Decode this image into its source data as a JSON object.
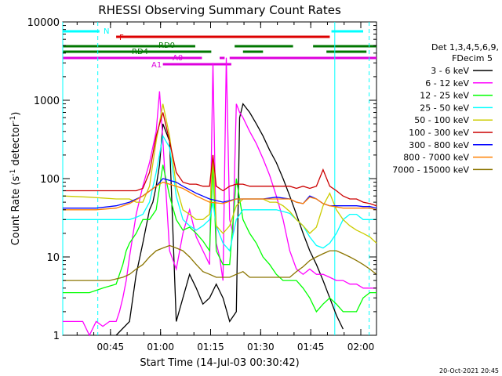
{
  "chart_data": {
    "type": "line",
    "title": "RHESSI Observing Summary Count Rates",
    "xlabel": "Start Time (14-Jul-03 00:30:42)",
    "ylabel": "Count Rate (s",
    "ylabel_sup": "-1",
    "ylabel_tail": " detector",
    "ylabel_end": ")",
    "y_scale": "log",
    "xlim_minutes": [
      0,
      94
    ],
    "ylim": [
      1,
      10000
    ],
    "x_ticks": [
      {
        "t": 14.3,
        "label": "00:45"
      },
      {
        "t": 29.3,
        "label": "01:00"
      },
      {
        "t": 44.3,
        "label": "01:15"
      },
      {
        "t": 59.3,
        "label": "01:30"
      },
      {
        "t": 74.3,
        "label": "01:45"
      },
      {
        "t": 89.3,
        "label": "02:00"
      }
    ],
    "y_ticks": [
      {
        "v": 1,
        "label": "1"
      },
      {
        "v": 10,
        "label": "10"
      },
      {
        "v": 100,
        "label": "100"
      },
      {
        "v": 1000,
        "label": "1000"
      },
      {
        "v": 10000,
        "label": "10000"
      }
    ],
    "legend": {
      "header": [
        "Det 1,3,4,5,6,9,",
        "FDecim 5"
      ],
      "entries": [
        {
          "label": "3 - 6 keV",
          "color": "#000000"
        },
        {
          "label": "6 - 12 keV",
          "color": "#ff00ff"
        },
        {
          "label": "12 - 25 keV",
          "color": "#00ff00"
        },
        {
          "label": "25 - 50 keV",
          "color": "#00ffff"
        },
        {
          "label": "50 - 100 keV",
          "color": "#cccc00"
        },
        {
          "label": "100 - 300 keV",
          "color": "#cc0000"
        },
        {
          "label": "300 - 800 keV",
          "color": "#0000ff"
        },
        {
          "label": "800 - 7000 keV",
          "color": "#ff8000"
        },
        {
          "label": "7000 - 15000 keV",
          "color": "#8b7500"
        }
      ]
    },
    "flag_bars": [
      {
        "label": "N",
        "color": "#00ffff",
        "segments": [
          [
            0,
            11
          ],
          [
            80.5,
            90
          ]
        ]
      },
      {
        "label": "F",
        "color": "#dd0000",
        "segments": [
          [
            16,
            80
          ]
        ]
      },
      {
        "label": "RD0",
        "color": "#007700",
        "segments": [
          [
            0,
            39.7
          ],
          [
            51.5,
            69
          ],
          [
            75,
            93
          ],
          [
            92,
            94
          ]
        ]
      },
      {
        "label": "RD4",
        "color": "#007700",
        "segments": [
          [
            0,
            44.5
          ],
          [
            54,
            60
          ],
          [
            79,
            91
          ]
        ]
      },
      {
        "label": "A0",
        "color": "#dd00dd",
        "segments": [
          [
            0,
            41.7
          ],
          [
            47,
            48.5
          ],
          [
            50,
            94
          ]
        ]
      },
      {
        "label": "A1",
        "color": "#dd00dd",
        "segments": [
          [
            30,
            50.5
          ]
        ]
      }
    ],
    "vertical_lines": [
      {
        "t": 0,
        "style": "solid"
      },
      {
        "t": 10.5,
        "style": "dashed"
      },
      {
        "t": 81.5,
        "style": "solid"
      },
      {
        "t": 91.8,
        "style": "dashed"
      }
    ],
    "series": [
      {
        "name": "3 - 6 keV",
        "color": "#000000",
        "level": 1,
        "t": [
          16,
          20,
          22,
          24,
          26,
          27,
          28,
          29,
          30,
          32,
          34,
          36,
          38,
          40,
          42,
          44,
          46,
          48,
          50,
          52,
          53,
          54,
          56,
          58,
          60,
          62,
          64,
          66,
          68,
          70,
          72,
          74,
          76,
          78,
          80,
          82,
          84
        ],
        "y": [
          1,
          1.5,
          6,
          15,
          40,
          50,
          80,
          150,
          500,
          300,
          1.5,
          3,
          6,
          4,
          2.5,
          3,
          4.5,
          3,
          1.5,
          2,
          600,
          900,
          700,
          500,
          350,
          230,
          160,
          100,
          60,
          35,
          20,
          12,
          8,
          5,
          3,
          1.8,
          1.2
        ]
      },
      {
        "name": "6 - 12 keV",
        "color": "#ff00ff",
        "level": 2,
        "t": [
          0,
          4,
          6,
          8,
          10,
          12,
          14,
          16,
          17,
          18,
          19,
          20,
          22,
          24,
          26,
          28,
          29,
          30,
          32,
          34,
          36,
          38,
          40,
          42,
          44,
          45,
          46,
          47,
          48,
          49,
          50,
          51,
          52,
          53,
          54,
          56,
          58,
          60,
          62,
          64,
          66,
          68,
          70,
          72,
          74,
          76,
          78,
          80,
          82,
          84,
          86,
          88,
          90,
          92,
          94
        ],
        "y": [
          1.5,
          1.5,
          1.5,
          1,
          1.5,
          1.3,
          1.5,
          1.5,
          2,
          3,
          5,
          10,
          35,
          80,
          160,
          400,
          1300,
          300,
          12,
          7,
          20,
          40,
          18,
          12,
          8,
          3000,
          15,
          10,
          5,
          3500,
          30,
          20,
          900,
          700,
          600,
          400,
          280,
          180,
          110,
          60,
          30,
          12,
          7,
          6,
          7,
          6,
          6,
          5.5,
          5,
          5,
          4.5,
          4.5,
          4,
          4,
          4
        ]
      },
      {
        "name": "12 - 25 keV",
        "color": "#00ff00",
        "level": 3,
        "t": [
          0,
          8,
          12,
          16,
          18,
          19,
          20,
          22,
          24,
          26,
          28,
          30,
          32,
          34,
          36,
          38,
          40,
          42,
          44,
          45,
          46,
          48,
          50,
          52,
          54,
          56,
          58,
          60,
          62,
          64,
          66,
          68,
          70,
          72,
          74,
          76,
          78,
          80,
          82,
          84,
          86,
          88,
          90,
          92,
          94
        ],
        "y": [
          3.5,
          3.5,
          4,
          4.5,
          8,
          12,
          15,
          20,
          30,
          30,
          40,
          150,
          60,
          30,
          22,
          24,
          20,
          16,
          12,
          150,
          12,
          8,
          8,
          100,
          30,
          20,
          15,
          10,
          8,
          6,
          5,
          5,
          5,
          4,
          3,
          2,
          2.5,
          3,
          2.5,
          2,
          2,
          2,
          3,
          3.5,
          3.5
        ]
      },
      {
        "name": "25 - 50 keV",
        "color": "#00ffff",
        "level": 4,
        "t": [
          0,
          10,
          16,
          20,
          22,
          24,
          26,
          28,
          30,
          32,
          34,
          36,
          38,
          40,
          42,
          44,
          45,
          46,
          48,
          50,
          52,
          54,
          56,
          58,
          60,
          62,
          64,
          66,
          68,
          70,
          72,
          74,
          76,
          78,
          80,
          82,
          84,
          86,
          88,
          90,
          92,
          94
        ],
        "y": [
          30,
          30,
          30,
          30,
          32,
          35,
          50,
          120,
          350,
          250,
          60,
          30,
          25,
          22,
          25,
          30,
          50,
          25,
          15,
          12,
          30,
          40,
          40,
          40,
          40,
          40,
          40,
          38,
          36,
          30,
          25,
          18,
          14,
          13,
          15,
          20,
          30,
          35,
          35,
          30,
          30,
          30
        ]
      },
      {
        "name": "50 - 100 keV",
        "color": "#cccc00",
        "level": 5,
        "t": [
          0,
          8,
          16,
          20,
          22,
          24,
          26,
          28,
          30,
          32,
          34,
          36,
          38,
          40,
          42,
          44,
          45,
          46,
          48,
          50,
          52,
          54,
          56,
          58,
          60,
          62,
          64,
          66,
          68,
          70,
          72,
          74,
          76,
          78,
          80,
          82,
          84,
          86,
          88,
          90,
          92,
          94
        ],
        "y": [
          60,
          58,
          55,
          55,
          50,
          50,
          80,
          300,
          900,
          350,
          80,
          40,
          35,
          30,
          30,
          35,
          200,
          25,
          20,
          25,
          45,
          55,
          55,
          55,
          55,
          50,
          50,
          45,
          38,
          30,
          25,
          20,
          24,
          45,
          65,
          40,
          30,
          25,
          22,
          20,
          18,
          15
        ]
      },
      {
        "name": "100 - 300 keV",
        "color": "#cc0000",
        "level": 6,
        "t": [
          0,
          8,
          16,
          20,
          22,
          24,
          26,
          28,
          30,
          32,
          34,
          36,
          38,
          40,
          42,
          44,
          45,
          46,
          48,
          50,
          52,
          54,
          56,
          58,
          60,
          62,
          64,
          66,
          68,
          70,
          72,
          74,
          76,
          78,
          80,
          82,
          84,
          86,
          88,
          90,
          92,
          94
        ],
        "y": [
          70,
          70,
          70,
          70,
          70,
          75,
          120,
          350,
          700,
          300,
          120,
          90,
          85,
          85,
          80,
          80,
          200,
          80,
          70,
          80,
          85,
          85,
          80,
          80,
          80,
          80,
          80,
          80,
          80,
          75,
          80,
          75,
          80,
          130,
          80,
          70,
          60,
          55,
          55,
          50,
          48,
          45
        ]
      },
      {
        "name": "300 - 800 keV",
        "color": "#0000ff",
        "level": 7,
        "t": [
          0,
          10,
          16,
          20,
          24,
          28,
          30,
          32,
          34,
          36,
          40,
          44,
          48,
          52,
          56,
          60,
          64,
          68,
          70,
          72,
          74,
          76,
          78,
          80,
          84,
          88,
          90,
          92,
          94
        ],
        "y": [
          42,
          42,
          45,
          50,
          60,
          80,
          100,
          95,
          90,
          80,
          65,
          55,
          50,
          55,
          55,
          55,
          58,
          55,
          50,
          48,
          60,
          55,
          48,
          45,
          45,
          45,
          44,
          44,
          42
        ]
      },
      {
        "name": "800 - 7000 keV",
        "color": "#ff8000",
        "level": 8,
        "t": [
          0,
          10,
          16,
          20,
          24,
          28,
          30,
          32,
          36,
          40,
          44,
          48,
          52,
          56,
          60,
          64,
          68,
          70,
          72,
          74,
          76,
          78,
          80,
          84,
          88,
          90,
          92,
          94
        ],
        "y": [
          40,
          40,
          42,
          48,
          60,
          80,
          90,
          85,
          75,
          60,
          50,
          48,
          55,
          55,
          55,
          55,
          55,
          50,
          48,
          58,
          55,
          48,
          45,
          42,
          42,
          42,
          42,
          40
        ]
      },
      {
        "name": "7000 - 15000 keV",
        "color": "#8b7500",
        "level": 9,
        "t": [
          0,
          6,
          10,
          14,
          18,
          20,
          22,
          24,
          26,
          28,
          30,
          32,
          34,
          36,
          38,
          40,
          42,
          44,
          46,
          48,
          50,
          52,
          54,
          56,
          58,
          60,
          62,
          64,
          66,
          68,
          70,
          72,
          74,
          76,
          78,
          80,
          82,
          84,
          86,
          88,
          90,
          92,
          94
        ],
        "y": [
          5,
          5,
          5,
          5,
          5.5,
          6,
          7,
          8,
          10,
          12,
          13,
          14,
          13,
          12,
          10,
          8,
          6.5,
          6,
          5.5,
          5.5,
          5.5,
          6,
          6.5,
          5.5,
          5.5,
          5.5,
          5.5,
          5.5,
          5.5,
          5.5,
          6.5,
          7.5,
          9,
          10,
          11,
          12,
          12,
          11,
          10,
          9,
          8,
          7,
          6
        ]
      }
    ]
  },
  "footer": {
    "date_stamp": "20-Oct-2021 20:45"
  }
}
